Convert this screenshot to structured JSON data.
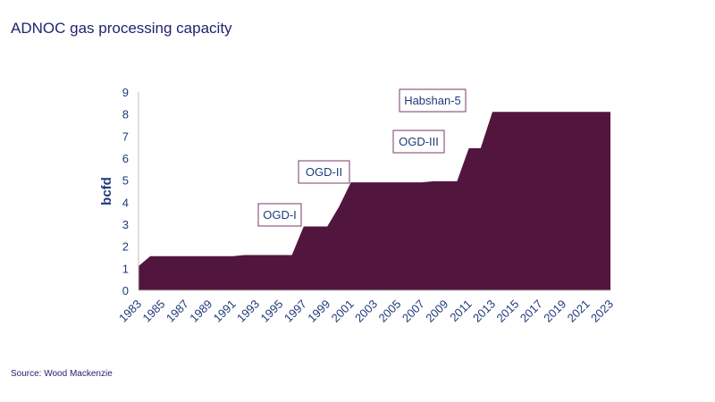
{
  "chart_data": {
    "type": "area",
    "title": "ADNOC gas processing capacity",
    "xlabel": "",
    "ylabel": "bcfd",
    "ylim": [
      0,
      9
    ],
    "yticks": [
      0,
      1,
      2,
      3,
      4,
      5,
      6,
      7,
      8,
      9
    ],
    "xlim": [
      1983,
      2023
    ],
    "xticks": [
      1983,
      1985,
      1987,
      1989,
      1991,
      1993,
      1995,
      1997,
      1999,
      2001,
      2003,
      2005,
      2007,
      2009,
      2011,
      2013,
      2015,
      2017,
      2019,
      2021,
      2023
    ],
    "grid": false,
    "color": "#52163e",
    "x": [
      1983,
      1984,
      1985,
      1986,
      1987,
      1988,
      1989,
      1990,
      1991,
      1992,
      1993,
      1994,
      1995,
      1996,
      1997,
      1998,
      1999,
      2000,
      2001,
      2002,
      2003,
      2004,
      2005,
      2006,
      2007,
      2008,
      2009,
      2010,
      2011,
      2012,
      2013,
      2014,
      2015,
      2016,
      2017,
      2018,
      2019,
      2020,
      2021,
      2022,
      2023
    ],
    "values": [
      1.1,
      1.55,
      1.55,
      1.55,
      1.55,
      1.55,
      1.55,
      1.55,
      1.55,
      1.6,
      1.6,
      1.6,
      1.6,
      1.6,
      2.9,
      2.9,
      2.9,
      3.8,
      4.9,
      4.9,
      4.9,
      4.9,
      4.9,
      4.9,
      4.9,
      4.95,
      4.95,
      4.95,
      6.45,
      6.45,
      8.1,
      8.1,
      8.1,
      8.1,
      8.1,
      8.1,
      8.1,
      8.1,
      8.1,
      8.1,
      8.1
    ],
    "annotations": [
      {
        "text": "OGD-I",
        "year": 1997
      },
      {
        "text": "OGD-II",
        "year": 2000
      },
      {
        "text": "OGD-III",
        "year": 2008
      },
      {
        "text": "Habshan-5",
        "year": 2009
      }
    ],
    "annotation_border_color": "#7b3a6a"
  },
  "source": "Source: Wood Mackenzie"
}
